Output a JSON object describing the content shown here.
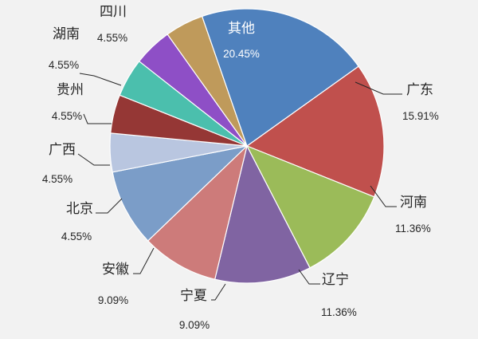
{
  "chart_data": {
    "type": "pie",
    "start_angle_deg": -35.5,
    "slices": [
      {
        "name": "广东",
        "label": "15.91%",
        "value": 15.91,
        "color": "#c0504d"
      },
      {
        "name": "河南",
        "label": "11.36%",
        "value": 11.36,
        "color": "#9bbb59"
      },
      {
        "name": "辽宁",
        "label": "11.36%",
        "value": 11.36,
        "color": "#8064a2"
      },
      {
        "name": "宁夏",
        "label": "9.09%",
        "value": 9.09,
        "color": "#cd7b7a"
      },
      {
        "name": "安徽",
        "label": "9.09%",
        "value": 9.09,
        "color": "#7b9dc8"
      },
      {
        "name": "北京",
        "label": "4.55%",
        "value": 4.55,
        "color": "#b9c6e0"
      },
      {
        "name": "广西",
        "label": "4.55%",
        "value": 4.55,
        "color": "#953735"
      },
      {
        "name": "贵州",
        "label": "4.55%",
        "value": 4.55,
        "color": "#4bbfad"
      },
      {
        "name": "湖南",
        "label": "4.55%",
        "value": 4.55,
        "color": "#8e4fc6"
      },
      {
        "name": "四川",
        "label": "4.55%",
        "value": 4.55,
        "color": "#bf9a5b"
      },
      {
        "name": "其他",
        "label": "20.45%",
        "value": 20.45,
        "color": "#4f81bd"
      }
    ]
  }
}
